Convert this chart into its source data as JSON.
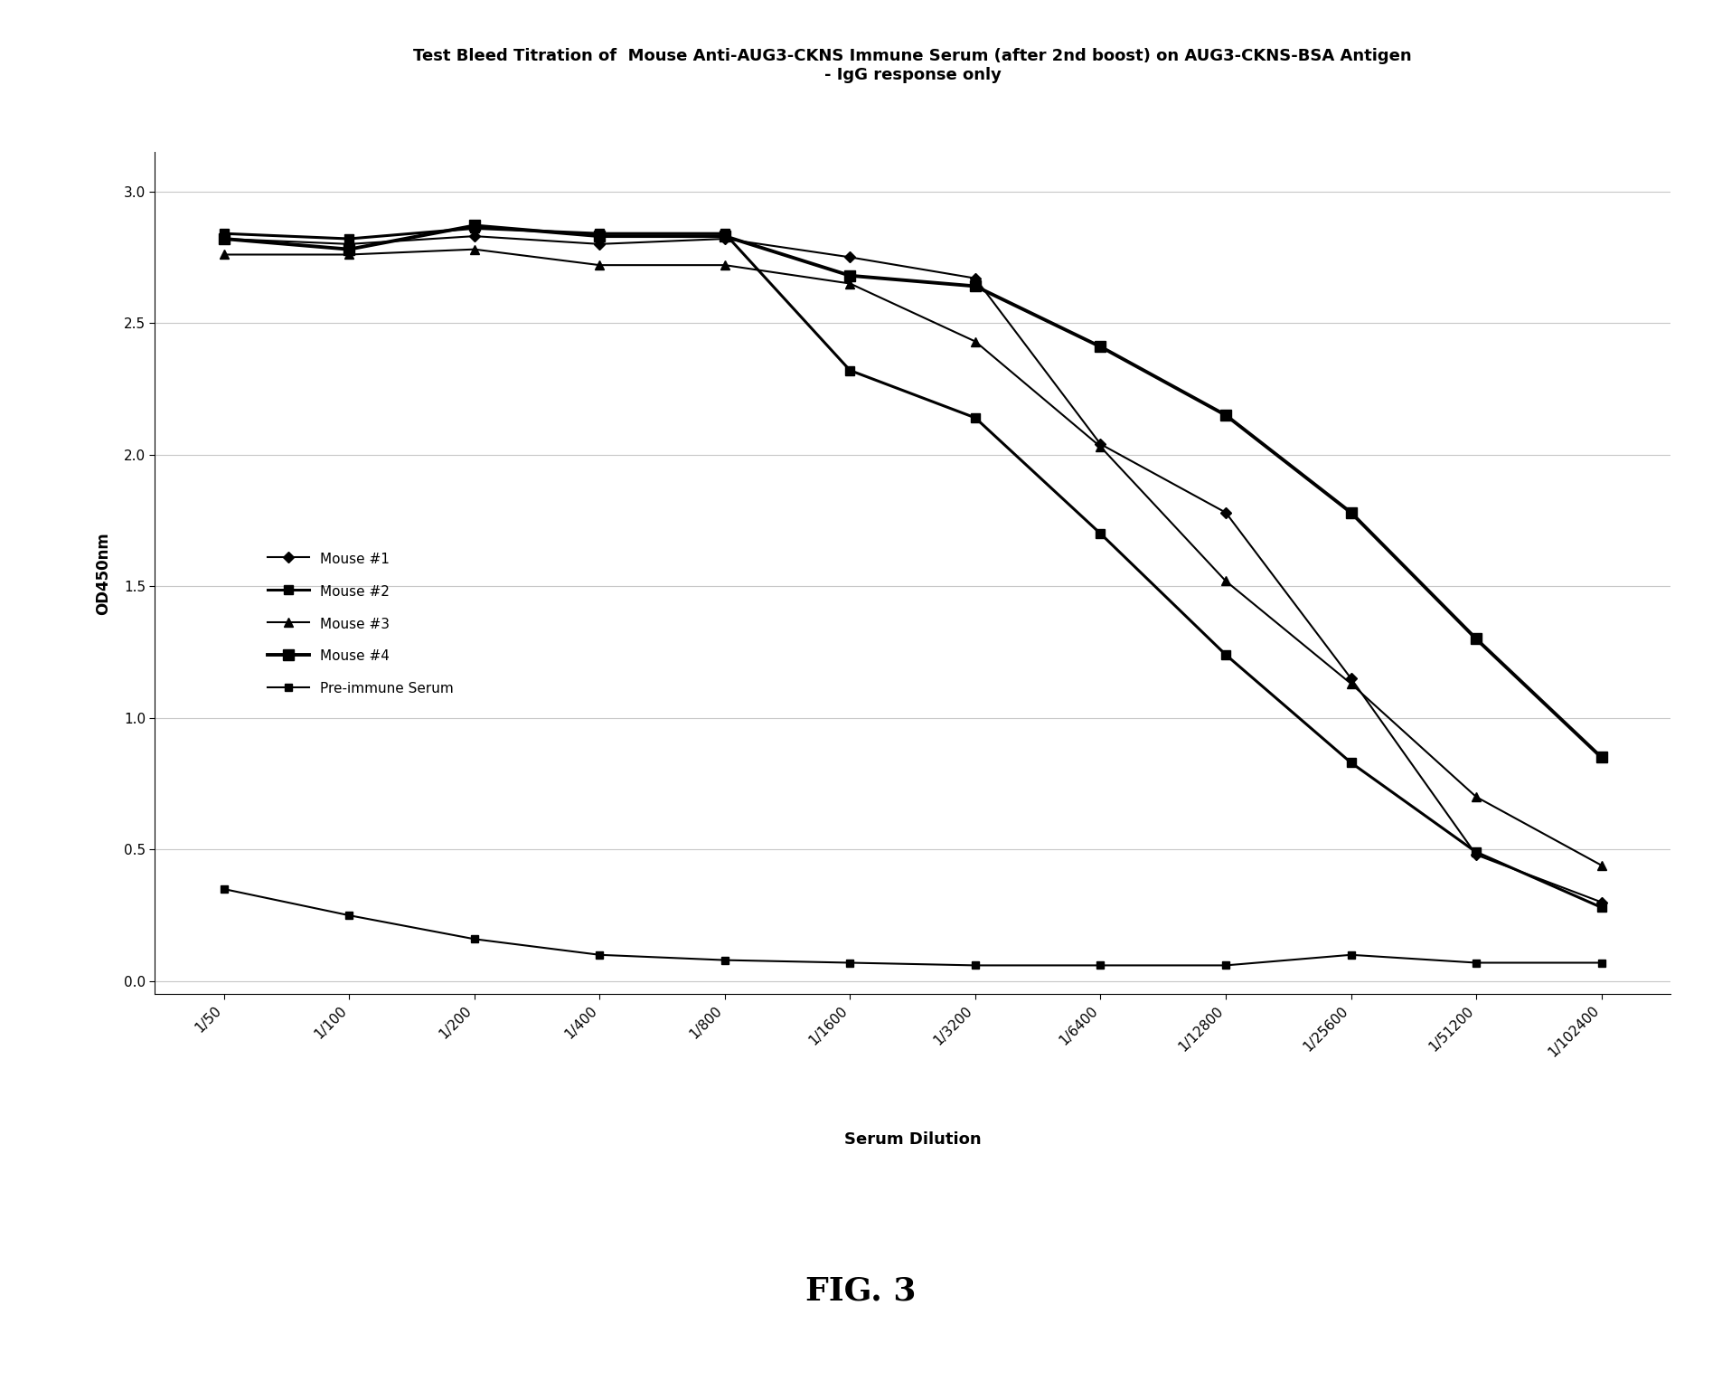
{
  "title_line1": "Test Bleed Titration of  Mouse Anti-AUG3-CKNS Immune Serum (after 2nd boost) on AUG3-CKNS-BSA Antigen",
  "title_line2": "- IgG response only",
  "xlabel": "Serum Dilution",
  "ylabel": "OD450nm",
  "fig_label": "FIG. 3",
  "x_labels": [
    "1/50",
    "1/100",
    "1/200",
    "1/400",
    "1/800",
    "1/1600",
    "1/3200",
    "1/6400",
    "1/12800",
    "1/25600",
    "1/51200",
    "1/102400"
  ],
  "series": [
    {
      "label": "Mouse #1",
      "color": "#000000",
      "marker": "D",
      "markersize": 6,
      "linewidth": 1.5,
      "values": [
        2.82,
        2.8,
        2.83,
        2.8,
        2.82,
        2.75,
        2.67,
        2.04,
        1.78,
        1.15,
        0.48,
        0.3
      ]
    },
    {
      "label": "Mouse #2",
      "color": "#000000",
      "marker": "s",
      "markersize": 7,
      "linewidth": 2.2,
      "values": [
        2.84,
        2.82,
        2.86,
        2.84,
        2.84,
        2.32,
        2.14,
        1.7,
        1.24,
        0.83,
        0.49,
        0.28
      ]
    },
    {
      "label": "Mouse #3",
      "color": "#000000",
      "marker": "^",
      "markersize": 7,
      "linewidth": 1.5,
      "values": [
        2.76,
        2.76,
        2.78,
        2.72,
        2.72,
        2.65,
        2.43,
        2.03,
        1.52,
        1.13,
        0.7,
        0.44
      ]
    },
    {
      "label": "Mouse #4",
      "color": "#000000",
      "marker": "s",
      "markersize": 9,
      "linewidth": 2.8,
      "values": [
        2.82,
        2.78,
        2.87,
        2.83,
        2.83,
        2.68,
        2.64,
        2.41,
        2.15,
        1.78,
        1.3,
        0.85
      ]
    },
    {
      "label": "Pre-immune Serum",
      "color": "#000000",
      "marker": "s",
      "markersize": 6,
      "linewidth": 1.5,
      "values": [
        0.35,
        0.25,
        0.16,
        0.1,
        0.08,
        0.07,
        0.06,
        0.06,
        0.06,
        0.1,
        0.07,
        0.07
      ]
    }
  ],
  "yticks": [
    0,
    0.5,
    1,
    1.5,
    2,
    2.5,
    3
  ],
  "ylim": [
    -0.05,
    3.15
  ],
  "background_color": "#ffffff",
  "title_fontsize": 13,
  "axis_label_fontsize": 12,
  "tick_fontsize": 11,
  "legend_fontsize": 11,
  "fig_label_fontsize": 26,
  "xlabel_fontsize": 12
}
